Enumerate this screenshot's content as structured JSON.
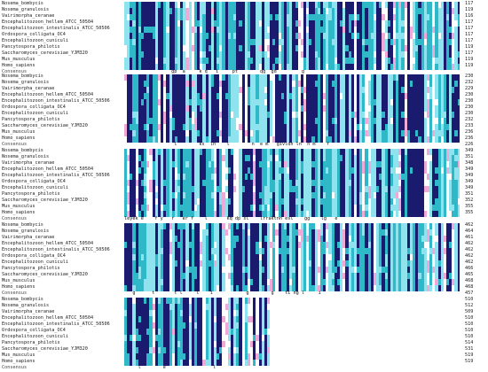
{
  "sequences": [
    "Nosema_bombycis",
    "Nosema_granulosis",
    "Vairimorpha_ceranae",
    "Encephalitozoon_hellem_ATCC_50504",
    "Encephalitozoon_intestinalis_ATCC_50506",
    "Ordospora_colligata_OC4",
    "Encephalitozoon_cuniculi",
    "Pancytospora_philotis",
    "Saccharomyces_cerevisiae_YJM320",
    "Mus_musculus",
    "Homo_sapiens"
  ],
  "consensus_label": "Consensus",
  "colors": {
    "identical": "#1a1a6e",
    "high": "#2fb8c8",
    "medium": "#8ee3ef",
    "low": "#f0a8d8",
    "background": "#ffffff"
  },
  "blocks": [
    {
      "end_positions": [
        "117",
        "119",
        "116",
        "117",
        "117",
        "117",
        "117",
        "119",
        "117",
        "119",
        "119"
      ],
      "consensus_end": "",
      "consensus_line": "                 gp  a     k q   i     pt        qg  gd         g"
    },
    {
      "end_positions": [
        "230",
        "232",
        "229",
        "230",
        "230",
        "230",
        "230",
        "232",
        "233",
        "236",
        "236"
      ],
      "consensus_end": "226",
      "consensus_line": "                  l        ks  ln    l        n  e m   givldn ln  n m    f"
    },
    {
      "end_positions": [
        "349",
        "351",
        "348",
        "349",
        "349",
        "349",
        "349",
        "351",
        "352",
        "355",
        "355"
      ],
      "consensus_end": "",
      "consensus_line": "leyek e    f y   r   er f    l       kq dp sl    lrraktnn esl    gg    lg   e"
    },
    {
      "end_positions": [
        "462",
        "464",
        "461",
        "462",
        "462",
        "462",
        "462",
        "466",
        "465",
        "468",
        "468"
      ],
      "consensus_end": "457",
      "consensus_line": "   g      t       t l     l    i            g        g    ti ng l     i"
    },
    {
      "end_positions": [
        "510",
        "512",
        "509",
        "510",
        "510",
        "510",
        "510",
        "514",
        "531",
        "519",
        "519"
      ],
      "consensus_end": "",
      "consensus_line": "     l        e                 l"
    }
  ]
}
